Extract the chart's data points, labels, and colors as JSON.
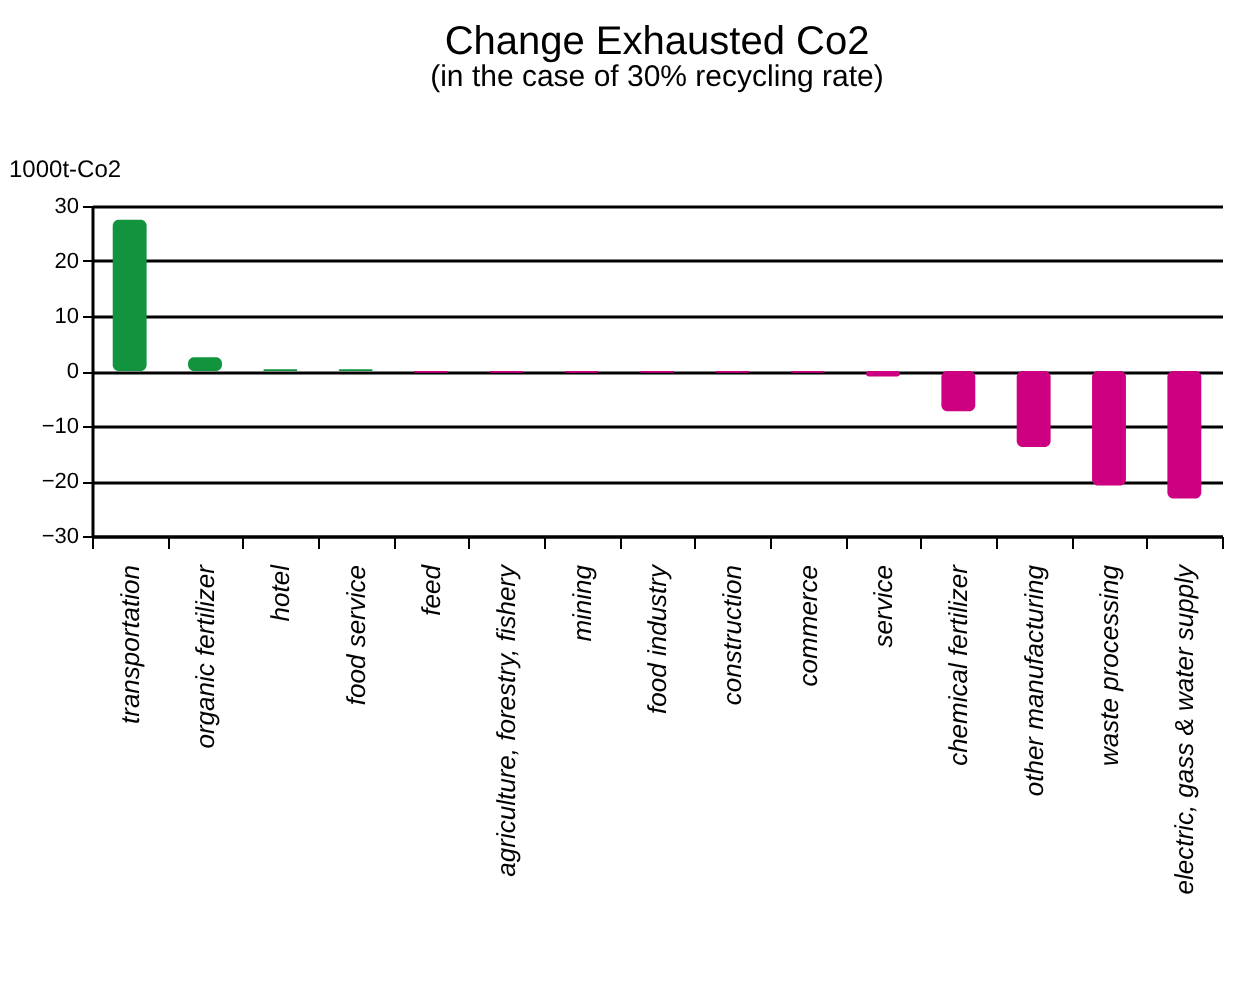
{
  "chart_data": {
    "type": "bar",
    "title": "Change Exhausted Co2",
    "subtitle": "(in the case of 30% recycling rate)",
    "ylabel": "1000t-Co2",
    "categories": [
      "transportation",
      "organic fertilizer",
      "hotel",
      "food service",
      "feed",
      "agriculture, forestry, fishery",
      "mining",
      "food industry",
      "construction",
      "commerce",
      "service",
      "chemical fertilizer",
      "other manufacturing",
      "waste processing",
      "electric, gass & water supply"
    ],
    "values": [
      27.5,
      2.5,
      0.3,
      0.3,
      -0.3,
      -0.3,
      -0.3,
      -0.3,
      -0.3,
      -0.3,
      -1,
      -7.3,
      -13.8,
      -20.8,
      -23.2
    ],
    "colors": [
      "#11943d",
      "#11943d",
      "#11943d",
      "#11943d",
      "#cc0080",
      "#cc0080",
      "#cc0080",
      "#cc0080",
      "#cc0080",
      "#cc0080",
      "#cc0080",
      "#cc0080",
      "#cc0080",
      "#cc0080",
      "#cc0080"
    ],
    "ylim": [
      -30,
      30
    ],
    "yticks": [
      -30,
      -20,
      -10,
      0,
      10,
      20,
      30
    ],
    "grid": "y"
  }
}
